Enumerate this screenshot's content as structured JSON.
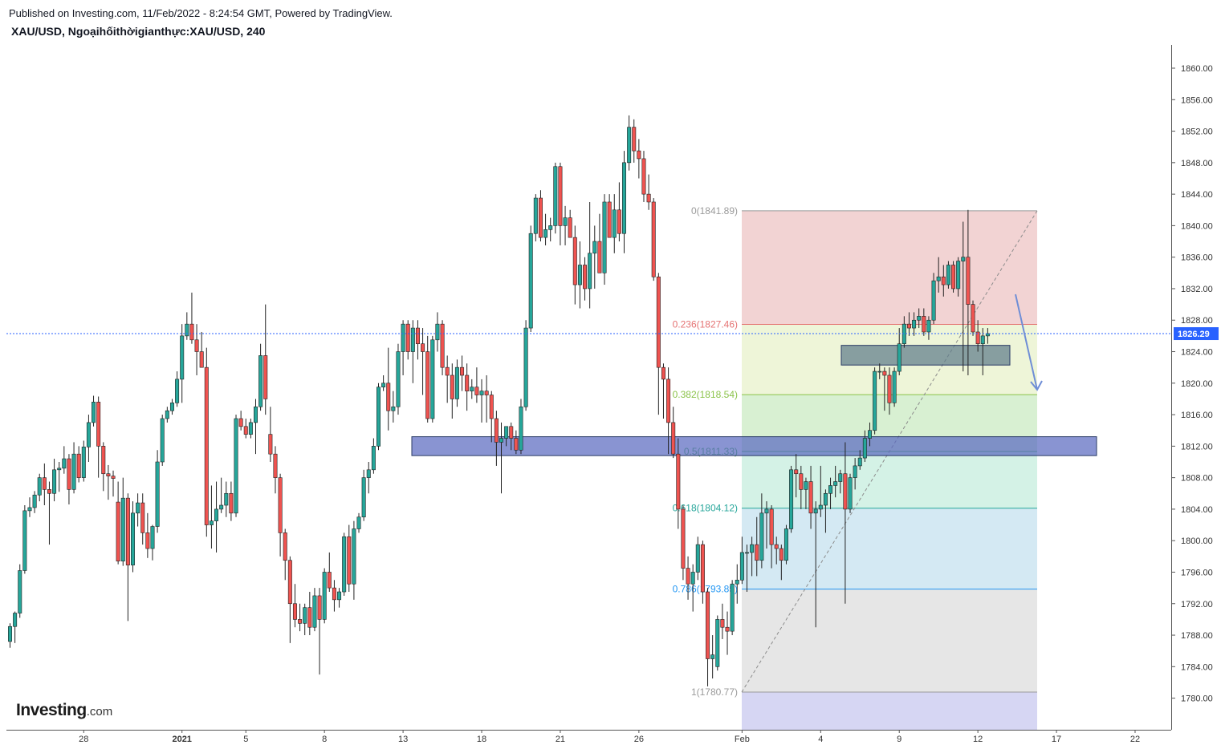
{
  "header": {
    "published": "Published on Investing.com, 11/Feb/2022 - 8:24:54 GMT, Powered by TradingView.",
    "symbol": "XAU/USD, Ngoạihốithờigianthực:XAU/USD, 240"
  },
  "logo": {
    "brand": "Investing",
    "suffix": ".com"
  },
  "colors": {
    "bull": "#26a69a",
    "bear": "#ef5350",
    "price_line": "#2962ff",
    "zone_blue": "#5c6bc0",
    "zone_gray": "#607d8b",
    "arrow": "#6f8ed6"
  },
  "chart_data": {
    "type": "candlestick",
    "title": "XAU/USD, Ngoạihốithờigianthực:XAU/USD, 240",
    "xlabel": "",
    "ylabel": "",
    "ylim": [
      1776,
      1862
    ],
    "grid": false,
    "y_ticks": [
      "1860.00",
      "1856.00",
      "1852.00",
      "1848.00",
      "1844.00",
      "1840.00",
      "1836.00",
      "1832.00",
      "1828.00",
      "1824.00",
      "1820.00",
      "1816.00",
      "1812.00",
      "1808.00",
      "1804.00",
      "1800.00",
      "1796.00",
      "1792.00",
      "1788.00",
      "1784.00",
      "1780.00",
      "1776.00"
    ],
    "x_ticks": [
      {
        "label": "28",
        "bar": 15
      },
      {
        "label": "2021",
        "bar": 35
      },
      {
        "label": "5",
        "bar": 48
      },
      {
        "label": "8",
        "bar": 64
      },
      {
        "label": "13",
        "bar": 80
      },
      {
        "label": "18",
        "bar": 96
      },
      {
        "label": "21",
        "bar": 112
      },
      {
        "label": "26",
        "bar": 128
      },
      {
        "label": "Feb",
        "bar": 149
      },
      {
        "label": "4",
        "bar": 165
      },
      {
        "label": "9",
        "bar": 181
      },
      {
        "label": "12",
        "bar": 197
      },
      {
        "label": "17",
        "bar": 213
      },
      {
        "label": "22",
        "bar": 229
      }
    ],
    "current_price": 1826.29,
    "current_price_label": "1826.29",
    "candles": [
      [
        1787.2,
        1789.5,
        1786.4,
        1789.1
      ],
      [
        1789.1,
        1791.0,
        1787.0,
        1790.8
      ],
      [
        1790.8,
        1797.0,
        1790.2,
        1796.2
      ],
      [
        1796.2,
        1804.5,
        1795.8,
        1803.8
      ],
      [
        1803.8,
        1805.5,
        1803.0,
        1804.2
      ],
      [
        1804.2,
        1806.3,
        1803.5,
        1805.8
      ],
      [
        1805.8,
        1808.5,
        1805.0,
        1808.0
      ],
      [
        1808.0,
        1809.8,
        1804.5,
        1806.5
      ],
      [
        1806.5,
        1807.5,
        1799.5,
        1806.0
      ],
      [
        1806.0,
        1810.4,
        1805.0,
        1809.0
      ],
      [
        1809.0,
        1810.0,
        1806.2,
        1809.2
      ],
      [
        1809.2,
        1812.0,
        1808.5,
        1810.4
      ],
      [
        1810.4,
        1811.0,
        1804.6,
        1806.5
      ],
      [
        1806.5,
        1812.5,
        1806.0,
        1811.0
      ],
      [
        1811.0,
        1812.0,
        1807.4,
        1808.0
      ],
      [
        1808.0,
        1812.7,
        1807.5,
        1811.9
      ],
      [
        1811.9,
        1816.0,
        1810.0,
        1815.0
      ],
      [
        1815.0,
        1818.4,
        1814.5,
        1817.6
      ],
      [
        1817.6,
        1818.3,
        1808.0,
        1812.0
      ],
      [
        1812.0,
        1812.5,
        1806.3,
        1808.5
      ],
      [
        1808.5,
        1809.6,
        1805.2,
        1808.2
      ],
      [
        1808.2,
        1808.9,
        1805.6,
        1807.9
      ],
      [
        1804.9,
        1807.5,
        1797.0,
        1797.4
      ],
      [
        1797.4,
        1808.0,
        1796.8,
        1805.4
      ],
      [
        1805.4,
        1806.0,
        1789.8,
        1796.9
      ],
      [
        1796.9,
        1805.0,
        1796.0,
        1803.5
      ],
      [
        1803.5,
        1806.0,
        1801.8,
        1804.8
      ],
      [
        1804.8,
        1806.0,
        1799.5,
        1801.0
      ],
      [
        1801.0,
        1803.5,
        1797.8,
        1799.0
      ],
      [
        1799.0,
        1802.0,
        1797.5,
        1801.8
      ],
      [
        1801.8,
        1811.5,
        1801.0,
        1810.0
      ],
      [
        1810.0,
        1816.0,
        1809.5,
        1815.5
      ],
      [
        1815.5,
        1817.0,
        1815.0,
        1816.5
      ],
      [
        1816.5,
        1818.0,
        1816.0,
        1817.5
      ],
      [
        1817.5,
        1821.5,
        1817.0,
        1820.5
      ],
      [
        1820.5,
        1827.5,
        1817.5,
        1826.0
      ],
      [
        1826.0,
        1829.0,
        1825.5,
        1827.5
      ],
      [
        1827.5,
        1831.5,
        1825.0,
        1825.5
      ],
      [
        1825.5,
        1827.5,
        1821.0,
        1824.0
      ],
      [
        1824.0,
        1826.5,
        1822.0,
        1822.0
      ],
      [
        1822.0,
        1824.5,
        1800.5,
        1802.0
      ],
      [
        1802.0,
        1807.0,
        1799.0,
        1802.5
      ],
      [
        1802.5,
        1807.5,
        1798.5,
        1804.0
      ],
      [
        1804.0,
        1808.0,
        1803.5,
        1804.5
      ],
      [
        1804.5,
        1807.5,
        1803.0,
        1806.0
      ],
      [
        1806.0,
        1807.5,
        1802.5,
        1803.5
      ],
      [
        1803.5,
        1816.0,
        1803.0,
        1815.5
      ],
      [
        1815.5,
        1816.5,
        1814.0,
        1814.5
      ],
      [
        1814.5,
        1815.5,
        1813.0,
        1813.5
      ],
      [
        1813.5,
        1815.5,
        1813.0,
        1815.0
      ],
      [
        1815.0,
        1818.0,
        1811.0,
        1817.0
      ],
      [
        1817.0,
        1825.0,
        1816.5,
        1823.5
      ],
      [
        1823.5,
        1830.0,
        1816.0,
        1818.0
      ],
      [
        1813.5,
        1817.0,
        1810.0,
        1811.0
      ],
      [
        1811.0,
        1812.0,
        1806.0,
        1808.0
      ],
      [
        1808.0,
        1808.5,
        1798.0,
        1801.0
      ],
      [
        1801.0,
        1801.5,
        1795.0,
        1797.5
      ],
      [
        1797.5,
        1798.0,
        1787.0,
        1792.0
      ],
      [
        1792.0,
        1794.5,
        1789.0,
        1790.0
      ],
      [
        1790.0,
        1792.0,
        1788.5,
        1789.5
      ],
      [
        1789.5,
        1792.0,
        1788.0,
        1791.5
      ],
      [
        1791.5,
        1793.5,
        1788.0,
        1789.0
      ],
      [
        1789.0,
        1794.0,
        1788.5,
        1793.0
      ],
      [
        1793.0,
        1794.0,
        1783.0,
        1790.0
      ],
      [
        1790.0,
        1796.5,
        1789.5,
        1796.0
      ],
      [
        1796.0,
        1798.5,
        1793.5,
        1794.0
      ],
      [
        1794.0,
        1795.0,
        1791.0,
        1792.5
      ],
      [
        1792.5,
        1794.0,
        1791.5,
        1793.5
      ],
      [
        1793.5,
        1801.0,
        1793.0,
        1800.5
      ],
      [
        1800.5,
        1802.0,
        1793.5,
        1794.5
      ],
      [
        1794.5,
        1802.5,
        1792.5,
        1801.5
      ],
      [
        1801.5,
        1803.5,
        1801.0,
        1803.0
      ],
      [
        1803.0,
        1809.0,
        1802.5,
        1808.0
      ],
      [
        1808.0,
        1810.0,
        1806.0,
        1809.0
      ],
      [
        1809.0,
        1813.0,
        1808.5,
        1812.0
      ],
      [
        1812.0,
        1820.0,
        1811.5,
        1819.5
      ],
      [
        1819.5,
        1821.0,
        1819.0,
        1820.0
      ],
      [
        1820.0,
        1824.5,
        1814.0,
        1816.5
      ],
      [
        1816.5,
        1819.0,
        1815.0,
        1817.0
      ],
      [
        1817.0,
        1825.0,
        1816.0,
        1824.0
      ],
      [
        1824.0,
        1828.0,
        1821.0,
        1827.5
      ],
      [
        1827.5,
        1828.0,
        1823.0,
        1824.0
      ],
      [
        1824.0,
        1828.0,
        1820.0,
        1827.0
      ],
      [
        1827.0,
        1828.0,
        1823.0,
        1825.0
      ],
      [
        1825.0,
        1827.0,
        1818.5,
        1824.0
      ],
      [
        1824.0,
        1826.0,
        1815.0,
        1815.5
      ],
      [
        1815.5,
        1826.0,
        1815.0,
        1825.5
      ],
      [
        1825.5,
        1829.0,
        1824.0,
        1827.5
      ],
      [
        1827.5,
        1828.0,
        1821.0,
        1822.0
      ],
      [
        1822.0,
        1823.5,
        1817.5,
        1821.0
      ],
      [
        1821.0,
        1822.5,
        1815.5,
        1818.0
      ],
      [
        1818.0,
        1823.0,
        1817.0,
        1822.0
      ],
      [
        1822.0,
        1823.5,
        1819.0,
        1821.0
      ],
      [
        1821.0,
        1822.5,
        1816.5,
        1819.0
      ],
      [
        1819.0,
        1820.5,
        1818.0,
        1819.5
      ],
      [
        1819.5,
        1822.0,
        1817.5,
        1818.5
      ],
      [
        1818.5,
        1820.5,
        1815.0,
        1819.0
      ],
      [
        1819.0,
        1821.0,
        1815.0,
        1818.5
      ],
      [
        1818.5,
        1819.0,
        1812.5,
        1815.5
      ],
      [
        1815.5,
        1816.5,
        1809.5,
        1812.5
      ],
      [
        1812.5,
        1815.0,
        1806.0,
        1813.0
      ],
      [
        1813.0,
        1814.5,
        1812.0,
        1814.5
      ],
      [
        1814.5,
        1815.0,
        1811.5,
        1813.0
      ],
      [
        1813.0,
        1814.0,
        1811.0,
        1811.5
      ],
      [
        1811.5,
        1818.0,
        1811.0,
        1817.0
      ],
      [
        1817.0,
        1828.0,
        1816.5,
        1827.0
      ],
      [
        1827.0,
        1840.0,
        1826.5,
        1839.0
      ],
      [
        1839.0,
        1844.0,
        1838.0,
        1843.5
      ],
      [
        1843.5,
        1844.5,
        1838.0,
        1838.5
      ],
      [
        1838.5,
        1841.5,
        1837.5,
        1839.5
      ],
      [
        1839.5,
        1841.0,
        1838.0,
        1840.0
      ],
      [
        1840.0,
        1848.0,
        1839.0,
        1847.5
      ],
      [
        1847.5,
        1848.0,
        1837.5,
        1840.0
      ],
      [
        1840.0,
        1842.5,
        1837.5,
        1841.0
      ],
      [
        1841.0,
        1842.0,
        1839.0,
        1838.5
      ],
      [
        1838.5,
        1840.0,
        1830.0,
        1832.5
      ],
      [
        1832.5,
        1838.0,
        1829.5,
        1835.0
      ],
      [
        1835.0,
        1836.0,
        1830.5,
        1832.0
      ],
      [
        1832.0,
        1843.0,
        1829.5,
        1836.5
      ],
      [
        1836.5,
        1840.0,
        1832.0,
        1838.0
      ],
      [
        1838.0,
        1841.5,
        1834.0,
        1834.0
      ],
      [
        1834.0,
        1844.0,
        1832.5,
        1843.0
      ],
      [
        1843.0,
        1844.0,
        1838.5,
        1838.5
      ],
      [
        1838.5,
        1844.0,
        1836.5,
        1842.0
      ],
      [
        1842.0,
        1845.5,
        1838.0,
        1839.0
      ],
      [
        1839.0,
        1849.5,
        1836.5,
        1848.0
      ],
      [
        1848.0,
        1854.0,
        1847.0,
        1852.5
      ],
      [
        1852.5,
        1853.5,
        1848.0,
        1849.5
      ],
      [
        1849.5,
        1851.0,
        1846.0,
        1848.5
      ],
      [
        1848.5,
        1849.5,
        1843.0,
        1844.0
      ],
      [
        1844.0,
        1846.5,
        1842.0,
        1843.0
      ],
      [
        1843.0,
        1843.5,
        1833.0,
        1833.5
      ],
      [
        1833.5,
        1834.0,
        1816.0,
        1822.0
      ],
      [
        1822.0,
        1822.5,
        1815.5,
        1820.5
      ],
      [
        1820.5,
        1822.0,
        1811.0,
        1815.0
      ],
      [
        1815.0,
        1817.0,
        1810.5,
        1811.0
      ],
      [
        1811.0,
        1813.0,
        1801.5,
        1804.0
      ],
      [
        1804.0,
        1804.5,
        1795.0,
        1796.5
      ],
      [
        1796.5,
        1798.0,
        1792.5,
        1794.5
      ],
      [
        1794.5,
        1797.0,
        1791.0,
        1796.0
      ],
      [
        1796.0,
        1800.5,
        1795.0,
        1799.5
      ],
      [
        1799.5,
        1800.0,
        1792.0,
        1793.5
      ],
      [
        1793.5,
        1794.0,
        1781.5,
        1785.0
      ],
      [
        1785.0,
        1788.0,
        1782.5,
        1785.5
      ],
      [
        1784.0,
        1790.5,
        1783.5,
        1790.0
      ],
      [
        1790.0,
        1792.0,
        1787.5,
        1789.0
      ],
      [
        1789.0,
        1791.0,
        1785.5,
        1788.5
      ],
      [
        1788.5,
        1795.0,
        1788.0,
        1794.5
      ],
      [
        1794.5,
        1797.0,
        1792.0,
        1795.0
      ],
      [
        1795.0,
        1800.5,
        1794.5,
        1798.5
      ],
      [
        1798.5,
        1799.5,
        1793.5,
        1798.5
      ],
      [
        1798.5,
        1800.5,
        1795.5,
        1799.5
      ],
      [
        1799.5,
        1803.0,
        1795.5,
        1797.5
      ],
      [
        1797.5,
        1806.0,
        1796.5,
        1803.5
      ],
      [
        1803.5,
        1805.0,
        1799.0,
        1804.0
      ],
      [
        1804.0,
        1804.5,
        1796.5,
        1799.5
      ],
      [
        1799.5,
        1800.5,
        1797.0,
        1799.0
      ],
      [
        1799.0,
        1799.5,
        1795.0,
        1797.5
      ],
      [
        1797.5,
        1802.0,
        1797.0,
        1801.5
      ],
      [
        1801.5,
        1809.5,
        1801.0,
        1809.0
      ],
      [
        1809.0,
        1811.0,
        1805.5,
        1808.5
      ],
      [
        1808.5,
        1809.5,
        1804.0,
        1806.5
      ],
      [
        1806.5,
        1808.0,
        1804.0,
        1807.5
      ],
      [
        1807.5,
        1809.5,
        1801.5,
        1803.5
      ],
      [
        1803.5,
        1805.0,
        1789.0,
        1804.0
      ],
      [
        1804.0,
        1809.5,
        1803.0,
        1804.5
      ],
      [
        1804.5,
        1806.5,
        1801.0,
        1806.0
      ],
      [
        1806.0,
        1808.0,
        1804.0,
        1807.0
      ],
      [
        1807.0,
        1809.5,
        1805.5,
        1807.5
      ],
      [
        1807.5,
        1809.0,
        1806.0,
        1808.5
      ],
      [
        1808.5,
        1812.5,
        1792.0,
        1804.0
      ],
      [
        1804.0,
        1808.5,
        1803.5,
        1808.0
      ],
      [
        1808.0,
        1810.5,
        1806.5,
        1809.5
      ],
      [
        1809.5,
        1811.5,
        1809.0,
        1810.5
      ],
      [
        1810.5,
        1814.0,
        1810.0,
        1813.0
      ],
      [
        1813.0,
        1815.0,
        1812.0,
        1814.0
      ],
      [
        1814.0,
        1822.0,
        1813.5,
        1821.5
      ],
      [
        1821.5,
        1822.5,
        1820.5,
        1821.5
      ],
      [
        1821.5,
        1822.0,
        1816.5,
        1821.0
      ],
      [
        1821.0,
        1822.0,
        1816.0,
        1817.5
      ],
      [
        1817.5,
        1822.0,
        1817.0,
        1821.5
      ],
      [
        1821.5,
        1827.0,
        1821.0,
        1825.0
      ],
      [
        1825.0,
        1828.5,
        1824.5,
        1827.5
      ],
      [
        1827.5,
        1829.0,
        1826.0,
        1827.0
      ],
      [
        1827.0,
        1829.0,
        1826.0,
        1828.0
      ],
      [
        1828.0,
        1829.5,
        1827.0,
        1828.5
      ],
      [
        1828.5,
        1829.5,
        1826.0,
        1826.5
      ],
      [
        1826.5,
        1828.5,
        1825.5,
        1828.0
      ],
      [
        1828.0,
        1834.0,
        1827.5,
        1833.0
      ],
      [
        1833.0,
        1836.0,
        1831.5,
        1833.5
      ],
      [
        1833.5,
        1835.0,
        1831.0,
        1832.5
      ],
      [
        1832.5,
        1835.5,
        1832.0,
        1835.0
      ],
      [
        1835.0,
        1835.5,
        1831.5,
        1832.0
      ],
      [
        1832.0,
        1836.0,
        1831.0,
        1835.5
      ],
      [
        1835.5,
        1840.5,
        1821.5,
        1836.0
      ],
      [
        1836.0,
        1842.0,
        1821.0,
        1830.0
      ],
      [
        1830.0,
        1830.5,
        1826.0,
        1826.5
      ],
      [
        1826.5,
        1828.0,
        1824.0,
        1825.0
      ],
      [
        1825.0,
        1827.0,
        1821.0,
        1826.0
      ],
      [
        1826.0,
        1827.0,
        1825.0,
        1826.3
      ]
    ],
    "fibonacci": {
      "levels": [
        {
          "label": "0(1841.89)",
          "price": 1841.89,
          "color": "#9a9a9a"
        },
        {
          "label": "0.236(1827.46)",
          "price": 1827.46,
          "color": "#e57373"
        },
        {
          "label": "0.382(1818.54)",
          "price": 1818.54,
          "color": "#8bc34a"
        },
        {
          "label": "0.5(1811.33)",
          "price": 1811.33,
          "color": "#4caf50"
        },
        {
          "label": "0.618(1804.12)",
          "price": 1804.12,
          "color": "#26a69a"
        },
        {
          "label": "0.786(1793.85)",
          "price": 1793.85,
          "color": "#2196f3"
        },
        {
          "label": "1(1780.77)",
          "price": 1780.77,
          "color": "#9a9a9a"
        }
      ],
      "fills": [
        "#f2d3d3",
        "#eef5d8",
        "#d8f0d2",
        "#d4f2e6",
        "#d4e9f3",
        "#e6e6e6"
      ],
      "extension_fill": "#d6d6f3"
    },
    "zones": [
      {
        "name": "support-zone",
        "top": 1813.2,
        "bottom": 1810.8,
        "color": "#5c6bc0"
      },
      {
        "name": "resistance-zone",
        "top": 1824.8,
        "bottom": 1822.3,
        "color": "#607d8b"
      }
    ]
  }
}
